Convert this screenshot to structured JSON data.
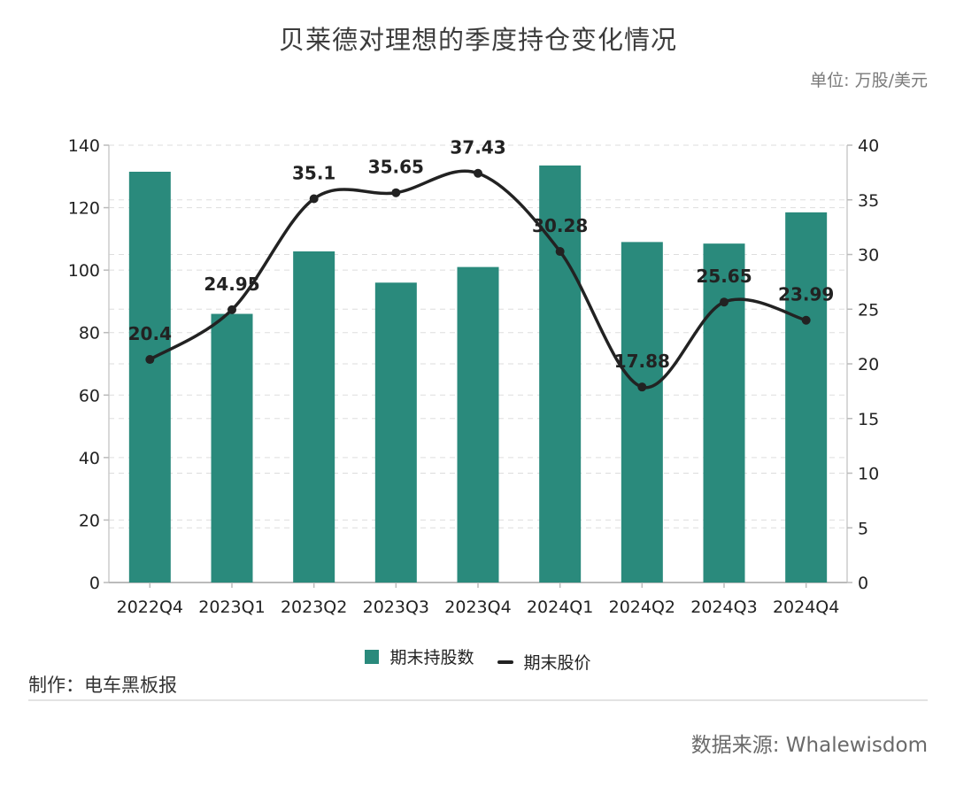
{
  "title": "贝莱德对理想的季度持仓变化情况",
  "unit": "单位: 万股/美元",
  "credit": "制作：电车黑板报",
  "source": "数据来源: Whalewisdom",
  "colors": {
    "bar": "#2a8a7c",
    "line": "#222222",
    "grid": "#dddddd"
  },
  "chart_data": {
    "type": "bar+line",
    "categories": [
      "2022Q4",
      "2023Q1",
      "2023Q2",
      "2023Q3",
      "2023Q4",
      "2024Q1",
      "2024Q2",
      "2024Q3",
      "2024Q4"
    ],
    "series": [
      {
        "name": "期末持股数",
        "type": "bar",
        "axis": "left",
        "values": [
          131.5,
          86,
          106,
          96,
          101,
          133.5,
          109,
          108.5,
          118.5
        ]
      },
      {
        "name": "期末股价",
        "type": "line",
        "axis": "right",
        "values": [
          20.4,
          24.95,
          35.1,
          35.65,
          37.43,
          30.28,
          17.88,
          25.65,
          23.99
        ],
        "labels": [
          "20.4",
          "24.95",
          "35.1",
          "35.65",
          "37.43",
          "30.28",
          "17.88",
          "25.65",
          "23.99"
        ]
      }
    ],
    "y_left": {
      "min": 0,
      "max": 140,
      "ticks": [
        0,
        20,
        40,
        60,
        80,
        100,
        120,
        140
      ]
    },
    "y_right": {
      "min": 0,
      "max": 40,
      "ticks": [
        0,
        5,
        10,
        15,
        20,
        25,
        30,
        35,
        40
      ]
    },
    "grid": true,
    "legend_position": "bottom"
  }
}
